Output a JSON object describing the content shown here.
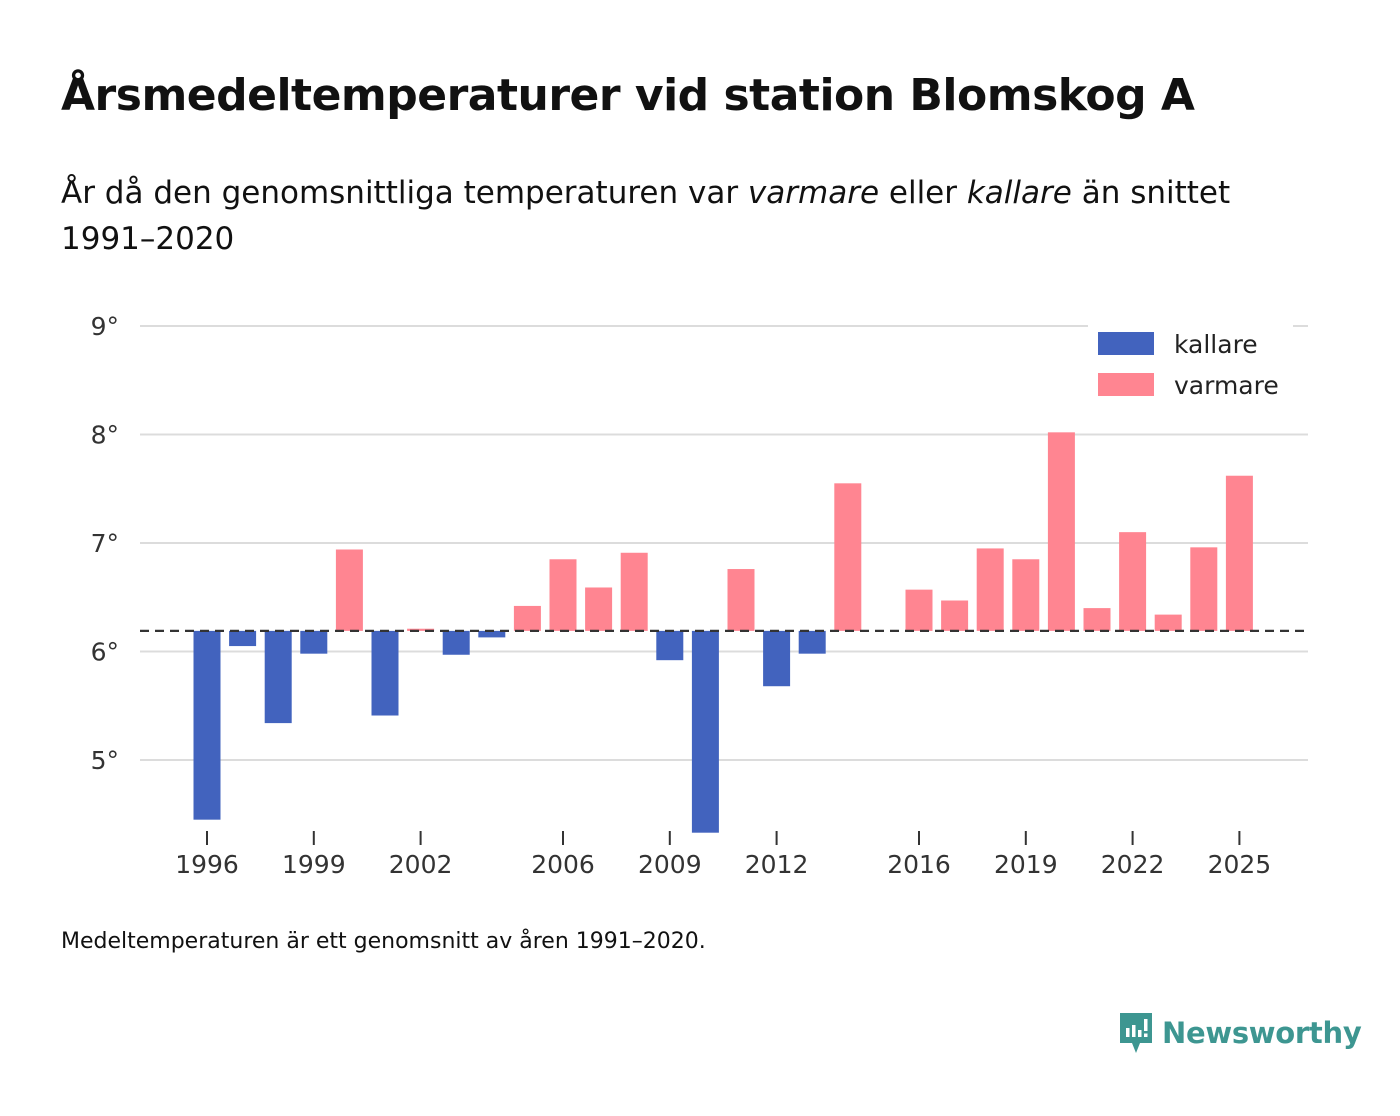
{
  "title": "Årsmedeltemperaturer vid station Blomskog A",
  "subtitle": {
    "part1": "År då den genomsnittliga temperaturen var ",
    "warmer": "varmare",
    "part2": " eller ",
    "colder": "kallare",
    "part3": " än snittet 1991–2020"
  },
  "footnote": "Medeltemperaturen är ett genomsnitt av åren 1991–2020.",
  "brand": "Newsworthy",
  "colors": {
    "colder": "#4263be",
    "warmer": "#ff8591",
    "grid": "#dcdcdc",
    "baseline": "#333333",
    "brand": "#3d9691"
  },
  "chart_data": {
    "type": "bar",
    "baseline": 6.19,
    "ylim": [
      4.35,
      9.1
    ],
    "yticks": [
      5,
      6,
      7,
      8,
      9
    ],
    "ytick_labels": [
      "5°",
      "6°",
      "7°",
      "8°",
      "9°"
    ],
    "xticks": [
      1996,
      1999,
      2002,
      2006,
      2009,
      2012,
      2016,
      2019,
      2022,
      2025
    ],
    "xtick_labels": [
      "1996",
      "1999",
      "2002",
      "2006",
      "2009",
      "2012",
      "2016",
      "2019",
      "2022",
      "2025"
    ],
    "legend": [
      {
        "key": "colder",
        "label": "kallare"
      },
      {
        "key": "warmer",
        "label": "varmare"
      }
    ],
    "legend_position": "top-right",
    "years": [
      1996,
      1997,
      1998,
      1999,
      2000,
      2001,
      2002,
      2003,
      2004,
      2005,
      2006,
      2007,
      2008,
      2009,
      2010,
      2011,
      2012,
      2013,
      2014,
      2015,
      2016,
      2017,
      2018,
      2019,
      2020,
      2021,
      2022,
      2023,
      2024,
      2025
    ],
    "values": [
      4.45,
      6.05,
      5.34,
      5.98,
      6.94,
      5.41,
      6.21,
      5.97,
      6.13,
      6.42,
      6.85,
      6.59,
      6.91,
      5.92,
      4.33,
      6.76,
      5.68,
      5.98,
      7.55,
      null,
      6.57,
      6.47,
      6.95,
      6.85,
      8.02,
      6.4,
      7.1,
      6.34,
      6.96,
      7.62
    ],
    "xlabel": "",
    "ylabel": ""
  }
}
